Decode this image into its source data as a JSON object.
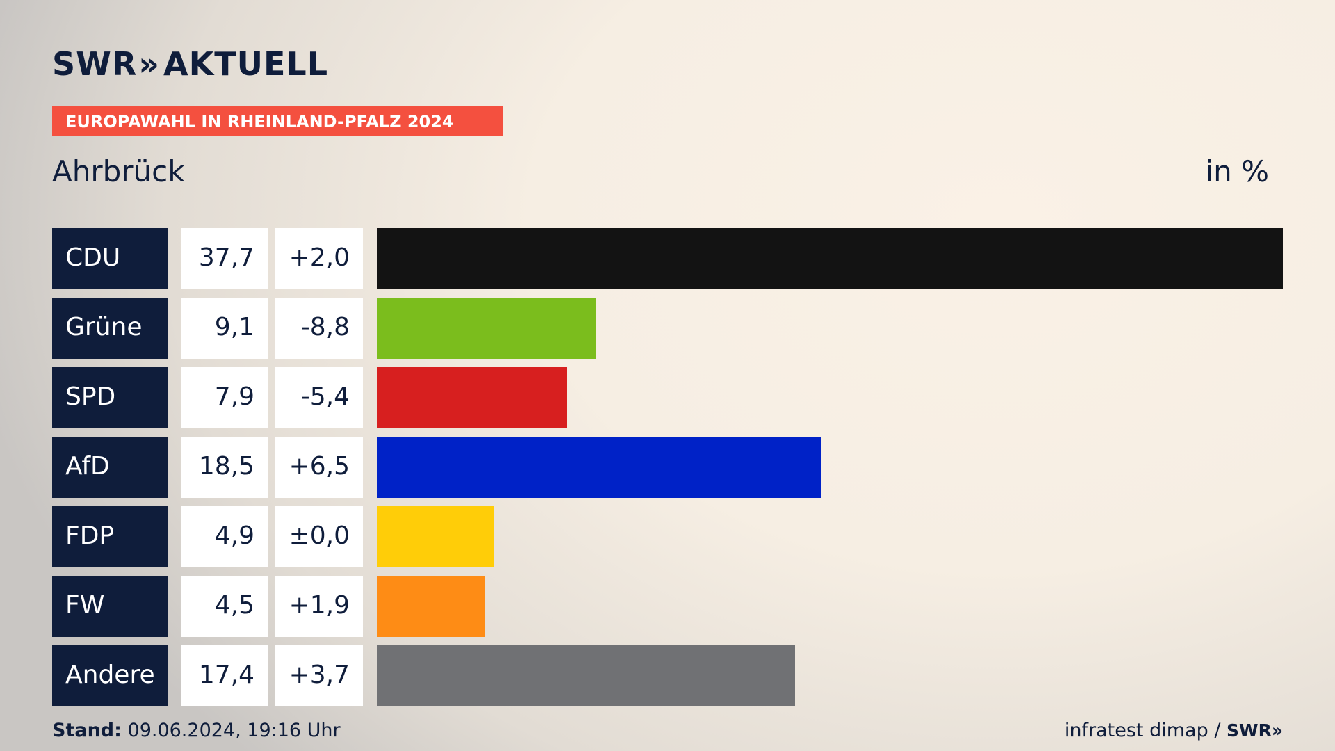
{
  "brand": {
    "logo_prefix": "SWR",
    "logo_chevrons": "»",
    "logo_suffix": "AKTUELL"
  },
  "banner": "EUROPAWAHL IN RHEINLAND-PFALZ 2024",
  "location": "Ahrbrück",
  "unit_label": "in %",
  "footer": {
    "stand_label": "Stand:",
    "stand_value": "09.06.2024, 19:16 Uhr",
    "source": "infratest dimap /",
    "source_brand": "SWR»"
  },
  "colors": {
    "accent": "#f4503f",
    "navy": "#0f1d3b"
  },
  "chart_data": {
    "type": "bar",
    "orientation": "horizontal",
    "categories": [
      "CDU",
      "Grüne",
      "SPD",
      "AfD",
      "FDP",
      "FW",
      "Andere"
    ],
    "values": [
      37.7,
      9.1,
      7.9,
      18.5,
      4.9,
      4.5,
      17.4
    ],
    "value_labels": [
      "37,7",
      "9,1",
      "7,9",
      "18,5",
      "4,9",
      "4,5",
      "17,4"
    ],
    "change_labels": [
      "+2,0",
      "-8,8",
      "-5,4",
      "+6,5",
      "±0,0",
      "+1,9",
      "+3,7"
    ],
    "bar_colors": [
      "#131313",
      "#7bbd1d",
      "#d71f1f",
      "#0022c7",
      "#ffcd08",
      "#fe8c15",
      "#707174"
    ],
    "xlim": [
      0,
      37.7
    ],
    "title": "Ahrbrück",
    "unit": "in %"
  }
}
